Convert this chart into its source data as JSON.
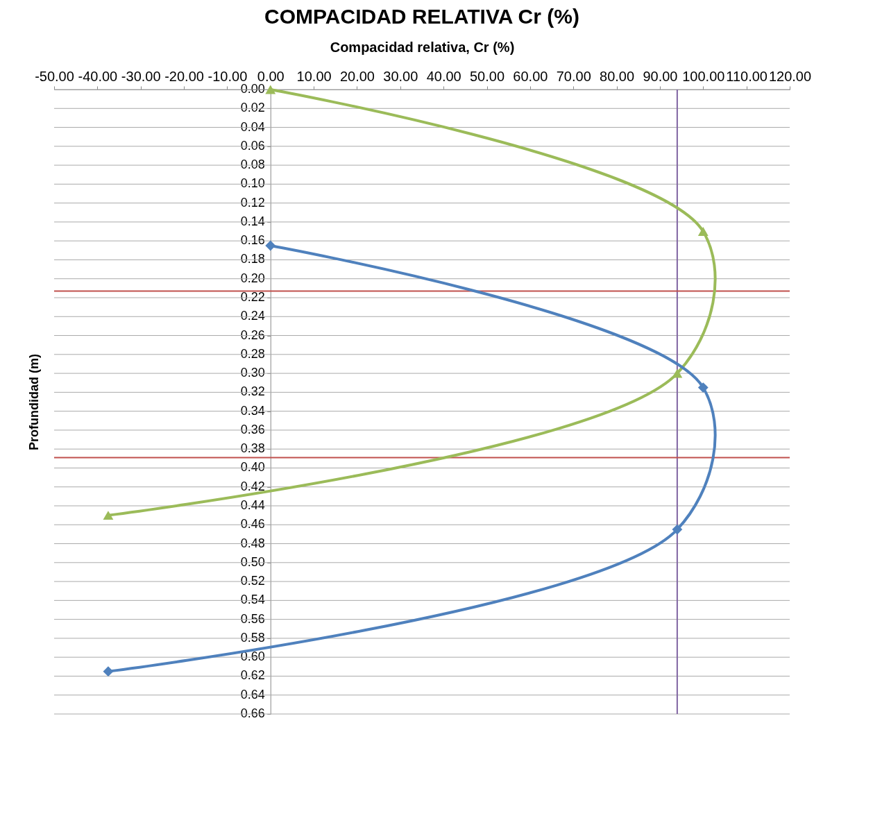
{
  "chart_data": {
    "type": "line",
    "title": "COMPACIDAD RELATIVA Cr (%)",
    "xlabel": "Compacidad relativa, Cr (%)",
    "ylabel": "Profundidad (m)",
    "xlim": [
      -50,
      120
    ],
    "xticks": [
      {
        "value": -50,
        "label": "-50.00"
      },
      {
        "value": -40,
        "label": "-40.00"
      },
      {
        "value": -30,
        "label": "-30.00"
      },
      {
        "value": -20,
        "label": "-20.00"
      },
      {
        "value": -10,
        "label": "-10.00"
      },
      {
        "value": 0,
        "label": "0.00"
      },
      {
        "value": 10,
        "label": "10.00"
      },
      {
        "value": 20,
        "label": "20.00"
      },
      {
        "value": 30,
        "label": "30.00"
      },
      {
        "value": 40,
        "label": "40.00"
      },
      {
        "value": 50,
        "label": "50.00"
      },
      {
        "value": 60,
        "label": "60.00"
      },
      {
        "value": 70,
        "label": "70.00"
      },
      {
        "value": 80,
        "label": "80.00"
      },
      {
        "value": 90,
        "label": "90.00"
      },
      {
        "value": 100,
        "label": "100.00"
      },
      {
        "value": 110,
        "label": "110.00"
      },
      {
        "value": 120,
        "label": "120.00"
      }
    ],
    "ylim": [
      0.66,
      0
    ],
    "yticks": [
      {
        "value": 0,
        "label": "0.00"
      },
      {
        "value": 0.02,
        "label": "0.02"
      },
      {
        "value": 0.04,
        "label": "0.04"
      },
      {
        "value": 0.06,
        "label": "0.06"
      },
      {
        "value": 0.08,
        "label": "0.08"
      },
      {
        "value": 0.1,
        "label": "0.10"
      },
      {
        "value": 0.12,
        "label": "0.12"
      },
      {
        "value": 0.14,
        "label": "0.14"
      },
      {
        "value": 0.16,
        "label": "0.16"
      },
      {
        "value": 0.18,
        "label": "0.18"
      },
      {
        "value": 0.2,
        "label": "0.20"
      },
      {
        "value": 0.22,
        "label": "0.22"
      },
      {
        "value": 0.24,
        "label": "0.24"
      },
      {
        "value": 0.26,
        "label": "0.26"
      },
      {
        "value": 0.28,
        "label": "0.28"
      },
      {
        "value": 0.3,
        "label": "0.30"
      },
      {
        "value": 0.32,
        "label": "0.32"
      },
      {
        "value": 0.34,
        "label": "0.34"
      },
      {
        "value": 0.36,
        "label": "0.36"
      },
      {
        "value": 0.38,
        "label": "0.38"
      },
      {
        "value": 0.4,
        "label": "0.40"
      },
      {
        "value": 0.42,
        "label": "0.42"
      },
      {
        "value": 0.44,
        "label": "0.44"
      },
      {
        "value": 0.46,
        "label": "0.46"
      },
      {
        "value": 0.48,
        "label": "0.48"
      },
      {
        "value": 0.5,
        "label": "0.50"
      },
      {
        "value": 0.52,
        "label": "0.52"
      },
      {
        "value": 0.54,
        "label": "0.54"
      },
      {
        "value": 0.56,
        "label": "0.56"
      },
      {
        "value": 0.58,
        "label": "0.58"
      },
      {
        "value": 0.6,
        "label": "0.60"
      },
      {
        "value": 0.62,
        "label": "0.62"
      },
      {
        "value": 0.64,
        "label": "0.64"
      },
      {
        "value": 0.66,
        "label": "0.66"
      }
    ],
    "grid": "y",
    "series": [
      {
        "color": "#9bbb59",
        "marker": "triangle",
        "x": [
          0,
          100,
          94,
          -37.5
        ],
        "values": [
          0,
          0.15,
          0.3,
          0.45
        ]
      },
      {
        "color": "#4f81bd",
        "marker": "diamond",
        "x": [
          0,
          100,
          94,
          -37.5
        ],
        "values": [
          0.165,
          0.315,
          0.465,
          0.615
        ]
      }
    ],
    "ref_lines": [
      {
        "axis": "x",
        "value": 94,
        "color": "#8064a2"
      },
      {
        "axis": "y",
        "value": 0.213,
        "color": "#c0504d"
      },
      {
        "axis": "y",
        "value": 0.389,
        "color": "#c0504d"
      }
    ]
  }
}
